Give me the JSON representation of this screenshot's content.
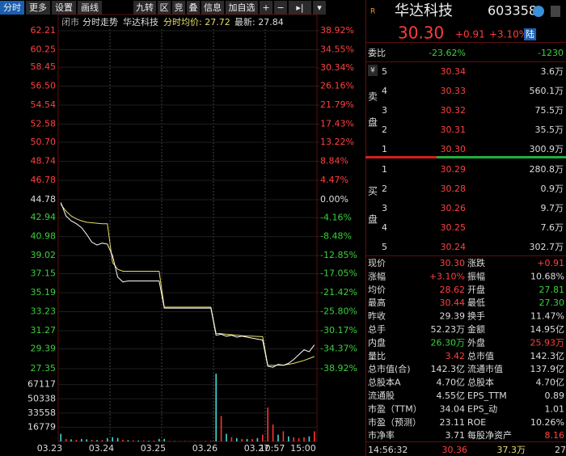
{
  "toolbar": {
    "left": [
      "分时",
      "更多",
      "设置",
      "画线"
    ],
    "right": [
      "九转",
      "区",
      "竞",
      "叠",
      "信息",
      "加自选",
      "+",
      "−",
      "▸|",
      "▾"
    ]
  },
  "chart_header": [
    "闭市",
    "分时走势",
    "华达科技",
    "分时",
    "均价: 27.72",
    "最新: 27.84"
  ],
  "chart_data": {
    "type": "line",
    "categories": [
      "03.23",
      null,
      null,
      null,
      null,
      null,
      null,
      null,
      null,
      null,
      "03.24",
      null,
      null,
      null,
      null,
      null,
      null,
      null,
      null,
      null,
      "03.25",
      null,
      null,
      null,
      null,
      null,
      null,
      null,
      null,
      null,
      "03.26",
      null,
      null,
      null,
      null,
      null,
      null,
      null,
      null,
      null,
      "03.27",
      null,
      null,
      "10:57",
      null,
      null,
      null,
      null,
      null,
      "15:00"
    ],
    "price": {
      "color": "#ffffff",
      "values": [
        44.5,
        43.1,
        42.6,
        42.3,
        41.9,
        41.2,
        40.4,
        40.1,
        40.3,
        40.2,
        39.0,
        36.8,
        36.3,
        36.4,
        36.4,
        36.4,
        36.4,
        36.4,
        36.4,
        36.4,
        33.6,
        33.6,
        33.6,
        33.6,
        33.6,
        33.6,
        33.6,
        33.6,
        33.6,
        33.6,
        30.8,
        30.9,
        30.7,
        30.8,
        30.6,
        30.7,
        30.6,
        30.5,
        30.4,
        30.3,
        27.6,
        27.5,
        27.8,
        27.7,
        27.9,
        28.3,
        28.8,
        29.3,
        29.1,
        29.8
      ]
    },
    "avg": {
      "color": "#e8df6a",
      "values": [
        44.3,
        43.6,
        43.1,
        42.8,
        42.6,
        42.45,
        42.4,
        42.35,
        42.3,
        42.3,
        38.3,
        37.6,
        37.4,
        37.4,
        37.4,
        37.4,
        37.4,
        37.4,
        37.4,
        37.4,
        33.7,
        33.7,
        33.7,
        33.7,
        33.7,
        33.7,
        33.7,
        33.7,
        33.7,
        33.7,
        31.0,
        30.95,
        30.9,
        30.85,
        30.8,
        30.75,
        30.72,
        30.7,
        30.68,
        30.65,
        27.7,
        27.68,
        27.7,
        27.72,
        27.8,
        27.9,
        28.05,
        28.2,
        28.4,
        28.6
      ]
    },
    "ylim": [
      27.35,
      62.21
    ],
    "yticks": [
      62.21,
      60.25,
      58.45,
      {
        "value": 56.5,
        "label": "56.50"
      },
      54.54,
      52.58,
      {
        "value": 50.7,
        "label": "50.70"
      },
      48.74,
      46.78,
      44.78,
      42.94,
      40.98,
      39.02,
      37.15,
      35.19,
      33.23,
      31.27,
      29.39,
      27.35
    ],
    "y2lim": [
      -38.92,
      38.92
    ],
    "y2ticks": [
      {
        "value": 38.92,
        "label": "38.92%"
      },
      {
        "value": 34.55,
        "label": "34.55%"
      },
      {
        "value": 30.34,
        "label": "30.34%"
      },
      {
        "value": 26.16,
        "label": "26.16%"
      },
      {
        "value": 21.79,
        "label": "21.79%"
      },
      {
        "value": 17.43,
        "label": "17.43%"
      },
      {
        "value": 13.22,
        "label": "13.22%"
      },
      {
        "value": 8.84,
        "label": "8.84%"
      },
      {
        "value": 4.47,
        "label": "4.47%"
      },
      {
        "value": 0,
        "label": "0.00%"
      },
      {
        "value": -4.16,
        "label": "-4.16%"
      },
      {
        "value": -8.48,
        "label": "-8.48%"
      },
      {
        "value": -12.85,
        "label": "-12.85%"
      },
      {
        "value": -17.05,
        "label": "-17.05%"
      },
      {
        "value": -21.42,
        "label": "-21.42%"
      },
      {
        "value": -25.8,
        "label": "-25.80%"
      },
      {
        "value": -30.17,
        "label": "-30.17%"
      },
      {
        "value": -34.37,
        "label": "-34.37%"
      },
      {
        "value": -38.92,
        "label": "-38.92%"
      }
    ],
    "volume": {
      "values": [
        9000,
        3000,
        2500,
        2000,
        3000,
        2500,
        2000,
        1500,
        1500,
        4000,
        5000,
        4000,
        2000,
        1500,
        1200,
        1000,
        1000,
        800,
        1000,
        3000,
        3000,
        500,
        400,
        300,
        300,
        300,
        300,
        300,
        400,
        800,
        80000,
        30000,
        9000,
        5000,
        4000,
        3000,
        3000,
        3000,
        4000,
        8000,
        40000,
        20000,
        8000,
        12000,
        6000,
        5000,
        4000,
        5000,
        6000,
        12000
      ],
      "colors": [
        "#3fd9d9",
        "#ff3333",
        "#3fd9d9",
        "#ff3333",
        "#3fd9d9",
        "#3fd9d9",
        "#ff3333",
        "#3fd9d9",
        "#ff3333",
        "#3fd9d9",
        "#3fd9d9",
        "#3fd9d9",
        "#ff3333",
        "#3fd9d9",
        "#ff3333",
        "#3fd9d9",
        "#ff3333",
        "#3fd9d9",
        "#ff3333",
        "#3fd9d9",
        "#3fd9d9",
        "#ff3333",
        "#3fd9d9",
        "#ff3333",
        "#3fd9d9",
        "#ff3333",
        "#3fd9d9",
        "#ff3333",
        "#3fd9d9",
        "#ff3333",
        "#3fd9d9",
        "#ff3333",
        "#3fd9d9",
        "#ff3333",
        "#3fd9d9",
        "#ff3333",
        "#3fd9d9",
        "#ff3333",
        "#3fd9d9",
        "#ff3333",
        "#ff3333",
        "#ff3333",
        "#3fd9d9",
        "#ff3333",
        "#3fd9d9",
        "#ff3333",
        "#ff3333",
        "#ff3333",
        "#3fd9d9",
        "#ff3333"
      ],
      "ylim": [
        0,
        84000
      ],
      "yticks": [
        67117,
        50338,
        33558,
        16779
      ]
    }
  },
  "quote": {
    "badge": "R",
    "name": "华达科技",
    "code": "603358",
    "price": "30.30",
    "change": "+0.91",
    "change_pct": "+3.10%",
    "market": "陆"
  },
  "order_ratio": {
    "label": "委比",
    "ratio": "-23.62%",
    "diff": "-1230"
  },
  "currency_icon": "¥",
  "asks": {
    "side": [
      "卖",
      "盘"
    ],
    "rows": [
      [
        "5",
        "30.34",
        "3.6万"
      ],
      [
        "4",
        "30.33",
        "560.1万"
      ],
      [
        "3",
        "30.32",
        "75.5万"
      ],
      [
        "2",
        "30.31",
        "35.5万"
      ],
      [
        "1",
        "30.30",
        "300.9万"
      ]
    ]
  },
  "bids": {
    "side": [
      "买",
      "盘"
    ],
    "rows": [
      [
        "1",
        "30.29",
        "280.8万"
      ],
      [
        "2",
        "30.28",
        "0.9万"
      ],
      [
        "3",
        "30.26",
        "9.7万"
      ],
      [
        "4",
        "30.25",
        "7.6万"
      ],
      [
        "5",
        "30.24",
        "302.7万"
      ]
    ]
  },
  "stats": [
    {
      "cells": [
        "现价",
        "30.30",
        "涨跌",
        "+0.91"
      ],
      "value_colors": [
        "#ff4040",
        "#ff4040"
      ]
    },
    {
      "cells": [
        "涨幅",
        "+3.10%",
        "振幅",
        "10.68%"
      ],
      "value_colors": [
        "#ff4040",
        "#dddddd"
      ]
    },
    {
      "cells": [
        "均价",
        "28.62",
        "开盘",
        "27.81"
      ],
      "value_colors": [
        "#ff4040",
        "#3ad13a"
      ]
    },
    {
      "cells": [
        "最高",
        "30.44",
        "最低",
        "27.30"
      ],
      "value_colors": [
        "#ff4040",
        "#3ad13a"
      ]
    },
    {
      "cells": [
        "昨收",
        "29.39",
        "换手",
        "11.47%"
      ],
      "value_colors": [
        "#dddddd",
        "#dddddd"
      ]
    },
    {
      "cells": [
        "总手",
        "52.23万",
        "金额",
        "14.95亿"
      ],
      "value_colors": [
        "#dddddd",
        "#dddddd"
      ]
    },
    {
      "cells": [
        "内盘",
        "26.30万",
        "外盘",
        "25.93万"
      ],
      "value_colors": [
        "#3ad13a",
        "#ff4040"
      ]
    },
    {
      "cells": [
        "量比",
        "3.42",
        "总市值",
        "142.3亿"
      ],
      "value_colors": [
        "#ff4040",
        "#dddddd"
      ]
    },
    {
      "cells": [
        "总市值(合)",
        "142.3亿",
        "流通市值",
        "137.9亿"
      ],
      "value_colors": [
        "#dddddd",
        "#dddddd"
      ]
    },
    {
      "cells": [
        "总股本A",
        "4.70亿",
        "总股本",
        "4.70亿"
      ],
      "value_colors": [
        "#dddddd",
        "#dddddd"
      ]
    },
    {
      "cells": [
        "流通股",
        "4.55亿",
        "EPS_TTM",
        "0.89"
      ],
      "value_colors": [
        "#dddddd",
        "#dddddd"
      ]
    },
    {
      "cells": [
        "市盈（TTM）",
        "34.04",
        "EPS_动",
        "1.01"
      ],
      "value_colors": [
        "#dddddd",
        "#dddddd"
      ]
    },
    {
      "cells": [
        "市盈（预测）",
        "23.11",
        "ROE",
        "10.26%"
      ],
      "value_colors": [
        "#dddddd",
        "#dddddd"
      ]
    },
    {
      "cells": [
        "市净率",
        "3.71",
        "每股净资产",
        "8.16"
      ],
      "value_colors": [
        "#dddddd",
        "#ff4040"
      ]
    }
  ],
  "tick_row": [
    "14:56:32",
    "30.36",
    "37.3万",
    "27"
  ]
}
